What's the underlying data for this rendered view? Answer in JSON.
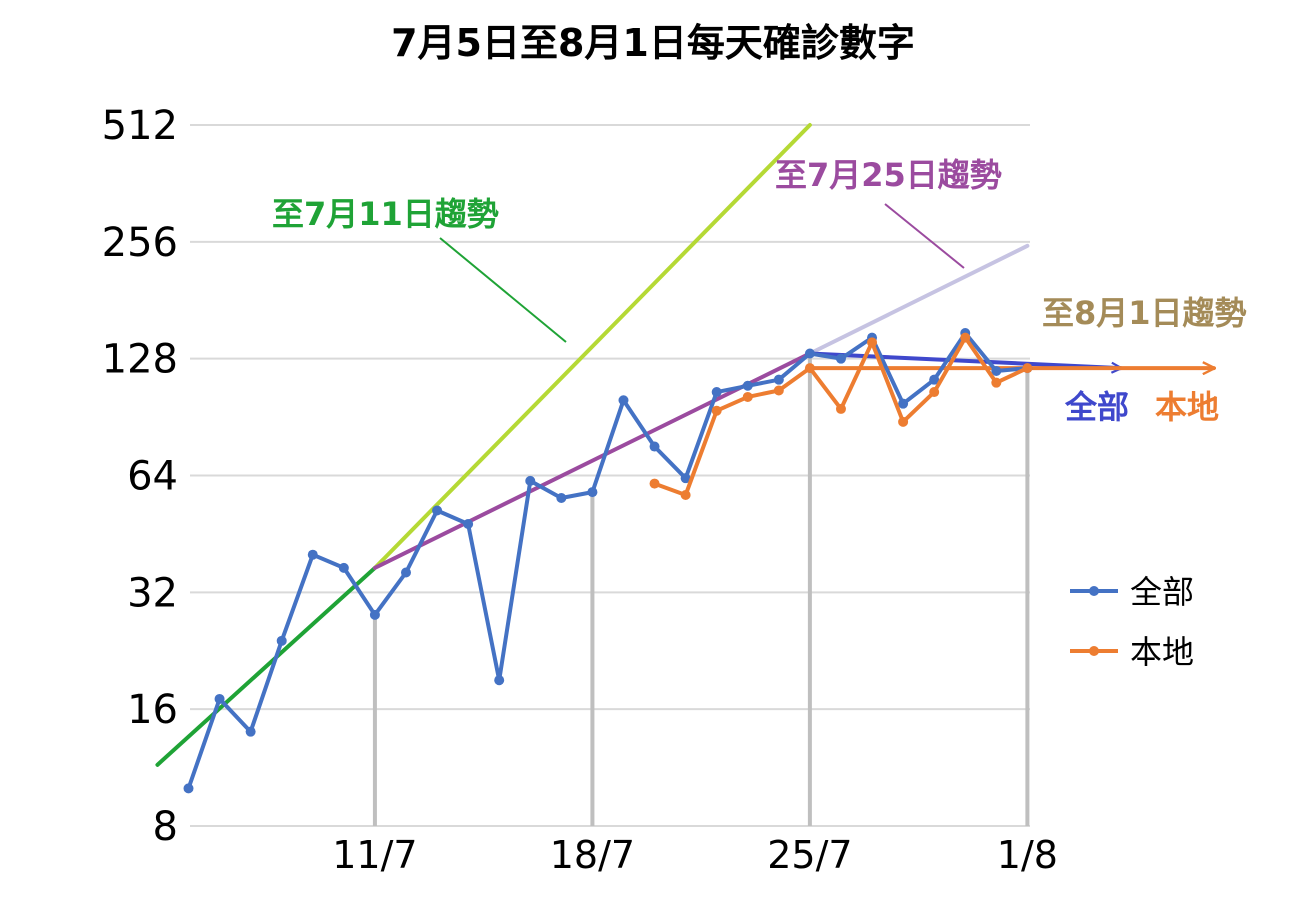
{
  "chart_data": {
    "type": "line",
    "title": "7月5日至8月1日每天確診數字",
    "xlabel": "",
    "ylabel": "",
    "y_scale": "log2",
    "ylim": [
      8,
      512
    ],
    "yticks": [
      8,
      16,
      32,
      64,
      128,
      256,
      512
    ],
    "ytick_labels": [
      "8",
      "16",
      "32",
      "64",
      "128",
      "256",
      "512"
    ],
    "x": [
      "5/7",
      "6/7",
      "7/7",
      "8/7",
      "9/7",
      "10/7",
      "11/7",
      "12/7",
      "13/7",
      "14/7",
      "15/7",
      "16/7",
      "17/7",
      "18/7",
      "19/7",
      "20/7",
      "21/7",
      "22/7",
      "23/7",
      "24/7",
      "25/7",
      "26/7",
      "27/7",
      "28/7",
      "29/7",
      "30/7",
      "31/7",
      "1/8"
    ],
    "xtick_labels": [
      "11/7",
      "18/7",
      "25/7",
      "1/8"
    ],
    "grid": true,
    "legend_position": "right",
    "series": [
      {
        "name": "全部",
        "color": "#4472C4",
        "values": [
          10,
          17,
          14,
          24,
          40,
          37,
          28,
          36,
          52,
          48,
          19,
          62,
          56,
          58,
          100,
          76,
          63,
          105,
          109,
          113,
          132,
          128,
          145,
          98,
          113,
          149,
          119,
          121
        ]
      },
      {
        "name": "本地",
        "color": "#ED7D31",
        "values": [
          null,
          null,
          null,
          null,
          null,
          null,
          null,
          null,
          null,
          null,
          null,
          null,
          null,
          null,
          null,
          61,
          57,
          94,
          102,
          106,
          121,
          95,
          141,
          88,
          105,
          145,
          111,
          121
        ]
      }
    ],
    "trend_lines": [
      {
        "label": "至7月11日趨勢",
        "color": "#1FA336",
        "from": [
          "4/7",
          11.5
        ],
        "to": [
          "11/7",
          37
        ]
      },
      {
        "label": "至7月11日趨勢",
        "color": "#B5D935",
        "from": [
          "11/7",
          37
        ],
        "to": [
          "25/7",
          512
        ]
      },
      {
        "label": "至7月25日趨勢",
        "color": "#9B4B9F",
        "from": [
          "11/7",
          37
        ],
        "to": [
          "25/7",
          132
        ]
      },
      {
        "label": "至7月25日趨勢",
        "color": "#C6C3E2",
        "from": [
          "25/7",
          132
        ],
        "to": [
          "1/8",
          250
        ]
      },
      {
        "label": "全部",
        "color": "#3F48CC",
        "from": [
          "25/7",
          132
        ],
        "to": [
          "4/8",
          121
        ]
      },
      {
        "label": "本地",
        "color": "#ED7D31",
        "from": [
          "25/7",
          121
        ],
        "to": [
          "7/8",
          121
        ]
      }
    ],
    "annotations": {
      "trend_jul11": "至7月11日趨勢",
      "trend_jul25": "至7月25日趨勢",
      "trend_aug1": "至8月1日趨勢",
      "arrow_all": "全部",
      "arrow_local": "本地"
    },
    "annotation_colors": {
      "trend_jul11": "#1FA336",
      "trend_jul25": "#9B4B9F",
      "trend_aug1": "#A48B58",
      "arrow_all": "#3F48CC",
      "arrow_local": "#ED7D31"
    }
  }
}
